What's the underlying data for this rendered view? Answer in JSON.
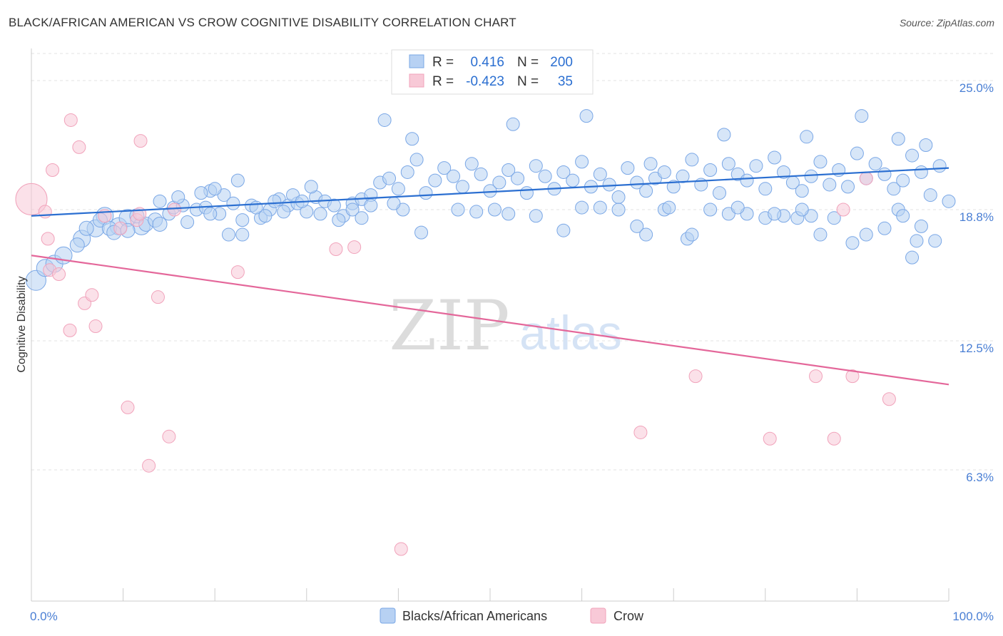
{
  "title": "BLACK/AFRICAN AMERICAN VS CROW COGNITIVE DISABILITY CORRELATION CHART",
  "source": "Source: ZipAtlas.com",
  "watermark": {
    "zip": "ZIP",
    "atlas": "atlas"
  },
  "legend": {
    "rows": [
      {
        "r_label": "R =",
        "r_value": "0.416",
        "n_label": "N =",
        "n_value": "200"
      },
      {
        "r_label": "R =",
        "r_value": "-0.423",
        "n_label": "N =",
        "n_value": "35"
      }
    ]
  },
  "bottom_legend": [
    "Blacks/African Americans",
    "Crow"
  ],
  "chart_data": {
    "type": "scatter",
    "title": "BLACK/AFRICAN AMERICAN VS CROW COGNITIVE DISABILITY CORRELATION CHART",
    "xlabel": "",
    "ylabel": "Cognitive Disability",
    "xlim": [
      0,
      100
    ],
    "ylim": [
      0,
      26.3
    ],
    "y_ticks": [
      6.3,
      12.5,
      18.8,
      25.0
    ],
    "y_tick_labels": [
      "6.3%",
      "12.5%",
      "18.8%",
      "25.0%"
    ],
    "x_tick_labels": [
      "0.0%",
      "100.0%"
    ],
    "x_tick_values": [
      0,
      10,
      20,
      30,
      40,
      50,
      60,
      70,
      80,
      90,
      100
    ],
    "colors": {
      "blue": "#7aa7e6",
      "blue_line": "#2b6fd1",
      "pink": "#f1a3bb",
      "pink_line": "#e4679a"
    },
    "series": [
      {
        "name": "Blacks/African Americans",
        "color": "blue",
        "R": 0.416,
        "N": 200,
        "trend": {
          "x": [
            0,
            100
          ],
          "y": [
            18.5,
            20.8
          ]
        },
        "points": [
          [
            0.5,
            15.4,
            14
          ],
          [
            1.5,
            16.0,
            12
          ],
          [
            2.5,
            16.2,
            12
          ],
          [
            3.5,
            16.6,
            12
          ],
          [
            5.5,
            17.4,
            12
          ],
          [
            7,
            17.9,
            12
          ],
          [
            8,
            18.5,
            12
          ],
          [
            9.5,
            18.0,
            12
          ],
          [
            10.5,
            18.4,
            12
          ],
          [
            12,
            18.0,
            12
          ],
          [
            5,
            17.1,
            10
          ],
          [
            6,
            17.9,
            10
          ],
          [
            7.5,
            18.3,
            10
          ],
          [
            8.5,
            17.9,
            10
          ],
          [
            9,
            17.7,
            10
          ],
          [
            10.5,
            17.8,
            10
          ],
          [
            11.5,
            18.5,
            10
          ],
          [
            12.5,
            18.1,
            10
          ],
          [
            13.5,
            18.3,
            10
          ],
          [
            14,
            18.1,
            10
          ],
          [
            15,
            18.6,
            9
          ],
          [
            15.5,
            18.9,
            9
          ],
          [
            16.5,
            19.0,
            9
          ],
          [
            17,
            18.2,
            9
          ],
          [
            18,
            18.8,
            9
          ],
          [
            19,
            18.9,
            9
          ],
          [
            19.5,
            19.7,
            9
          ],
          [
            20.5,
            18.6,
            9
          ],
          [
            21,
            19.5,
            9
          ],
          [
            22,
            19.1,
            9
          ],
          [
            23,
            18.3,
            9
          ],
          [
            24,
            19.0,
            9
          ],
          [
            25,
            18.4,
            9
          ],
          [
            26,
            18.8,
            9
          ],
          [
            27,
            19.3,
            9
          ],
          [
            28,
            19.0,
            9
          ],
          [
            29,
            19.1,
            9
          ],
          [
            30,
            18.7,
            9
          ],
          [
            31,
            19.4,
            9
          ],
          [
            32,
            19.2,
            9
          ],
          [
            14,
            19.2,
            9
          ],
          [
            16,
            19.4,
            9
          ],
          [
            18.5,
            19.6,
            9
          ],
          [
            20,
            19.8,
            9
          ],
          [
            22.5,
            20.2,
            9
          ],
          [
            24.5,
            18.9,
            9
          ],
          [
            26.5,
            19.2,
            9
          ],
          [
            28.5,
            19.5,
            9
          ],
          [
            30.5,
            19.9,
            9
          ],
          [
            33,
            19.0,
            9
          ],
          [
            34,
            18.5,
            9
          ],
          [
            35,
            19.1,
            9
          ],
          [
            36,
            19.3,
            9
          ],
          [
            37,
            19.5,
            9
          ],
          [
            38,
            20.1,
            9
          ],
          [
            39,
            20.3,
            9
          ],
          [
            40,
            19.8,
            9
          ],
          [
            41,
            20.6,
            9
          ],
          [
            42,
            21.2,
            9
          ],
          [
            43,
            19.6,
            9
          ],
          [
            44,
            20.2,
            9
          ],
          [
            45,
            20.8,
            9
          ],
          [
            46,
            20.4,
            9
          ],
          [
            47,
            19.9,
            9
          ],
          [
            48,
            21.0,
            9
          ],
          [
            49,
            20.5,
            9
          ],
          [
            50,
            19.7,
            9
          ],
          [
            51,
            20.1,
            9
          ],
          [
            52,
            20.7,
            9
          ],
          [
            53,
            20.3,
            9
          ],
          [
            54,
            19.6,
            9
          ],
          [
            55,
            20.9,
            9
          ],
          [
            56,
            20.4,
            9
          ],
          [
            57,
            19.8,
            9
          ],
          [
            58,
            20.6,
            9
          ],
          [
            59,
            20.2,
            9
          ],
          [
            60,
            21.1,
            9
          ],
          [
            61,
            19.9,
            9
          ],
          [
            62,
            20.5,
            9
          ],
          [
            63,
            20.0,
            9
          ],
          [
            64,
            19.4,
            9
          ],
          [
            65,
            20.8,
            9
          ],
          [
            66,
            20.1,
            9
          ],
          [
            67,
            19.7,
            9
          ],
          [
            68,
            20.3,
            9
          ],
          [
            69,
            20.6,
            9
          ],
          [
            70,
            19.9,
            9
          ],
          [
            71,
            20.4,
            9
          ],
          [
            72,
            21.2,
            9
          ],
          [
            73,
            20.0,
            9
          ],
          [
            74,
            20.7,
            9
          ],
          [
            75,
            19.6,
            9
          ],
          [
            76,
            21.0,
            9
          ],
          [
            77,
            20.5,
            9
          ],
          [
            78,
            20.2,
            9
          ],
          [
            79,
            20.9,
            9
          ],
          [
            80,
            19.8,
            9
          ],
          [
            81,
            21.3,
            9
          ],
          [
            82,
            20.6,
            9
          ],
          [
            83,
            20.1,
            9
          ],
          [
            84,
            19.7,
            9
          ],
          [
            85,
            20.4,
            9
          ],
          [
            86,
            21.1,
            9
          ],
          [
            87,
            20.0,
            9
          ],
          [
            88,
            20.7,
            9
          ],
          [
            89,
            19.9,
            9
          ],
          [
            90,
            21.5,
            9
          ],
          [
            91,
            20.3,
            9
          ],
          [
            92,
            21.0,
            9
          ],
          [
            93,
            20.5,
            9
          ],
          [
            94,
            19.8,
            9
          ],
          [
            95,
            20.2,
            9
          ],
          [
            96,
            21.4,
            9
          ],
          [
            97,
            20.6,
            9
          ],
          [
            98,
            19.5,
            9
          ],
          [
            99,
            20.9,
            9
          ],
          [
            100,
            19.2,
            9
          ],
          [
            38.5,
            23.1,
            9
          ],
          [
            41.5,
            22.2,
            9
          ],
          [
            52.5,
            22.9,
            9
          ],
          [
            60.5,
            23.3,
            9
          ],
          [
            67.5,
            21.0,
            9
          ],
          [
            84.5,
            22.3,
            9
          ],
          [
            90.5,
            23.3,
            9
          ],
          [
            94.5,
            22.2,
            9
          ],
          [
            97.5,
            21.9,
            9
          ],
          [
            75.5,
            22.4,
            9
          ],
          [
            35,
            18.8,
            9
          ],
          [
            37,
            19.0,
            9
          ],
          [
            40.5,
            18.8,
            9
          ],
          [
            42.5,
            17.7,
            9
          ],
          [
            46.5,
            18.8,
            9
          ],
          [
            48.5,
            18.7,
            9
          ],
          [
            50.5,
            18.8,
            9
          ],
          [
            52,
            18.6,
            9
          ],
          [
            55,
            18.5,
            9
          ],
          [
            58,
            17.8,
            9
          ],
          [
            60,
            18.9,
            9
          ],
          [
            62,
            18.9,
            9
          ],
          [
            64,
            18.8,
            9
          ],
          [
            66,
            18.0,
            9
          ],
          [
            67,
            17.6,
            9
          ],
          [
            69,
            18.8,
            9
          ],
          [
            71.5,
            17.4,
            9
          ],
          [
            72,
            17.6,
            9
          ],
          [
            78,
            18.6,
            9
          ],
          [
            80,
            18.4,
            9
          ],
          [
            82,
            18.5,
            9
          ],
          [
            83.5,
            18.4,
            9
          ],
          [
            85,
            18.5,
            9
          ],
          [
            86,
            17.6,
            9
          ],
          [
            87.5,
            18.4,
            9
          ],
          [
            89.5,
            17.2,
            9
          ],
          [
            91,
            17.6,
            9
          ],
          [
            93,
            17.9,
            9
          ],
          [
            94.5,
            18.8,
            9
          ],
          [
            95,
            18.5,
            9
          ],
          [
            96.5,
            17.3,
            9
          ],
          [
            97,
            18.0,
            9
          ],
          [
            98.5,
            17.3,
            9
          ],
          [
            96,
            16.5,
            9
          ],
          [
            69.5,
            18.9,
            9
          ],
          [
            74,
            18.8,
            9
          ],
          [
            76,
            18.6,
            9
          ],
          [
            77,
            18.9,
            9
          ],
          [
            81,
            18.6,
            9
          ],
          [
            84,
            18.8,
            9
          ],
          [
            19.5,
            18.6,
            9
          ],
          [
            21.5,
            17.6,
            9
          ],
          [
            23,
            17.6,
            9
          ],
          [
            25.5,
            18.5,
            9
          ],
          [
            27.5,
            18.7,
            9
          ],
          [
            29.5,
            19.2,
            9
          ],
          [
            31.5,
            18.6,
            9
          ],
          [
            33.5,
            18.3,
            9
          ],
          [
            36,
            18.4,
            9
          ],
          [
            39.5,
            19.1,
            9
          ]
        ]
      },
      {
        "name": "Crow",
        "color": "pink",
        "R": -0.423,
        "N": 35,
        "trend": {
          "x": [
            0,
            100
          ],
          "y": [
            16.6,
            10.4
          ]
        },
        "points": [
          [
            0,
            19.3,
            22
          ],
          [
            1.5,
            18.7,
            9
          ],
          [
            1.8,
            17.4,
            9
          ],
          [
            2.3,
            20.7,
            9
          ],
          [
            4.2,
            13.0,
            9
          ],
          [
            4.3,
            23.1,
            9
          ],
          [
            5.2,
            21.8,
            9
          ],
          [
            5.8,
            14.3,
            9
          ],
          [
            6.6,
            14.7,
            9
          ],
          [
            7,
            13.2,
            9
          ],
          [
            10.5,
            9.3,
            9
          ],
          [
            11.5,
            18.3,
            9
          ],
          [
            11.8,
            18.6,
            9
          ],
          [
            11.9,
            22.1,
            9
          ],
          [
            12.8,
            6.5,
            9
          ],
          [
            13.8,
            14.6,
            9
          ],
          [
            15,
            7.9,
            9
          ],
          [
            15.6,
            18.8,
            9
          ],
          [
            22.5,
            15.8,
            9
          ],
          [
            33.2,
            16.9,
            9
          ],
          [
            35.2,
            17.0,
            9
          ],
          [
            40.3,
            2.5,
            9
          ],
          [
            66.4,
            8.1,
            9
          ],
          [
            72.4,
            10.8,
            9
          ],
          [
            80.5,
            7.8,
            9
          ],
          [
            85.5,
            10.8,
            9
          ],
          [
            87.5,
            7.8,
            9
          ],
          [
            88.5,
            18.8,
            9
          ],
          [
            89.5,
            10.8,
            9
          ],
          [
            91,
            20.3,
            9
          ],
          [
            93.5,
            9.7,
            9
          ],
          [
            2,
            15.9,
            9
          ],
          [
            3,
            15.7,
            9
          ],
          [
            8,
            18.5,
            9
          ],
          [
            9.7,
            17.9,
            9
          ]
        ]
      }
    ]
  }
}
